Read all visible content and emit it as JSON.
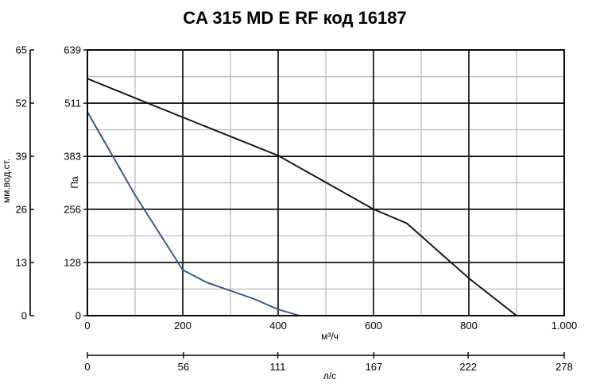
{
  "chart_data": {
    "type": "line",
    "title": "CA 315 MD E RF код 16187",
    "x_primary": {
      "label": "м³/ч",
      "ticks": [
        0,
        200,
        400,
        600,
        800,
        1000
      ],
      "tick_labels": [
        "0",
        "200",
        "400",
        "600",
        "800",
        "1.000"
      ],
      "range": [
        0,
        1000
      ]
    },
    "x_secondary": {
      "label": "л/с",
      "ticks": [
        0,
        56,
        111,
        167,
        222,
        278
      ],
      "tick_labels": [
        "0",
        "56",
        "111",
        "167",
        "222",
        "278"
      ],
      "range": [
        0,
        278
      ]
    },
    "y_primary": {
      "label": "Па",
      "ticks": [
        0,
        128,
        256,
        383,
        511,
        639
      ],
      "tick_labels": [
        "0",
        "128",
        "256",
        "383",
        "511",
        "639"
      ],
      "range": [
        0,
        639
      ]
    },
    "y_secondary": {
      "label": "мм.вод.ст.",
      "ticks": [
        0,
        13,
        26,
        39,
        52,
        65
      ],
      "tick_labels": [
        "0",
        "13",
        "26",
        "39",
        "52",
        "65"
      ],
      "range": [
        0,
        65
      ]
    },
    "grid": true,
    "series": [
      {
        "color": "#111111",
        "points": [
          [
            0,
            570
          ],
          [
            200,
            477
          ],
          [
            400,
            385
          ],
          [
            600,
            256
          ],
          [
            670,
            222
          ],
          [
            800,
            90
          ],
          [
            900,
            0
          ]
        ]
      },
      {
        "color": "#2e5590",
        "points": [
          [
            0,
            490
          ],
          [
            100,
            290
          ],
          [
            200,
            110
          ],
          [
            250,
            80
          ],
          [
            350,
            40
          ],
          [
            400,
            15
          ],
          [
            445,
            0
          ]
        ]
      }
    ]
  }
}
